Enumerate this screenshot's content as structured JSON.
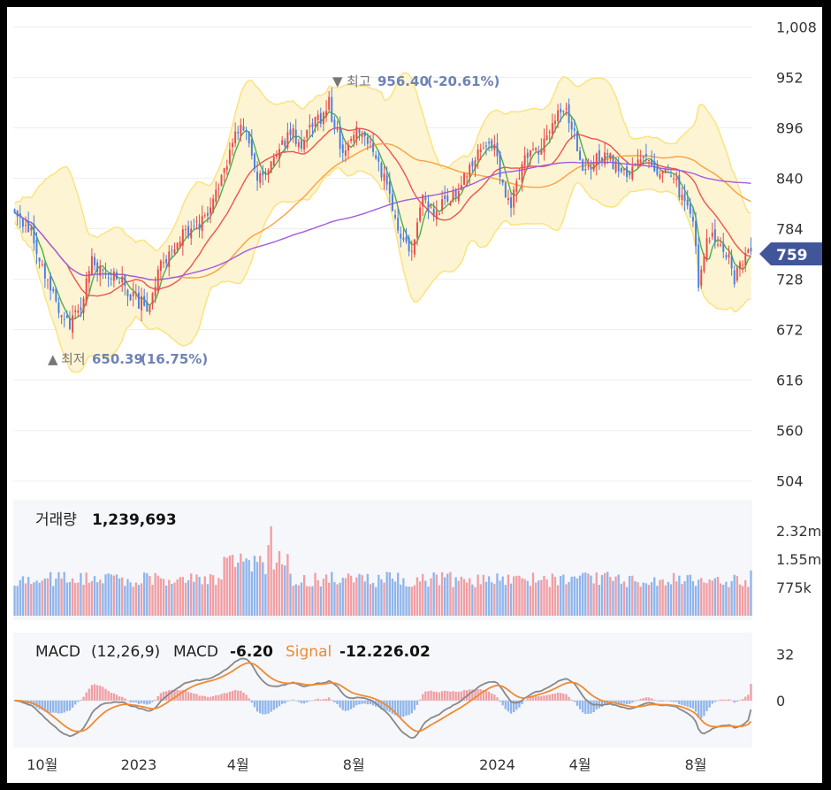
{
  "chart_data": {
    "type": "candlestick",
    "price_panel": {
      "y_ticks": [
        "1,008",
        "952",
        "896",
        "840",
        "784",
        "728",
        "672",
        "616",
        "560",
        "504"
      ],
      "ylim": [
        490,
        1030
      ],
      "current_price": "759",
      "current_price_value": 759,
      "high_marker": {
        "label": "최고",
        "value": "956.40",
        "pct": "(-20.61%)"
      },
      "low_marker": {
        "label": "최저",
        "value": "650.39",
        "pct": "(16.75%)"
      },
      "close_anchors": [
        [
          0,
          808
        ],
        [
          6,
          780
        ],
        [
          12,
          725
        ],
        [
          16,
          690
        ],
        [
          20,
          680
        ],
        [
          24,
          700
        ],
        [
          28,
          748
        ],
        [
          32,
          732
        ],
        [
          36,
          735
        ],
        [
          40,
          720
        ],
        [
          44,
          705
        ],
        [
          48,
          698
        ],
        [
          52,
          735
        ],
        [
          56,
          760
        ],
        [
          62,
          780
        ],
        [
          66,
          785
        ],
        [
          70,
          805
        ],
        [
          74,
          830
        ],
        [
          78,
          870
        ],
        [
          82,
          900
        ],
        [
          86,
          870
        ],
        [
          88,
          835
        ],
        [
          92,
          850
        ],
        [
          96,
          870
        ],
        [
          100,
          895
        ],
        [
          104,
          875
        ],
        [
          108,
          900
        ],
        [
          112,
          910
        ],
        [
          114,
          925
        ],
        [
          116,
          895
        ],
        [
          118,
          880
        ],
        [
          120,
          870
        ],
        [
          124,
          890
        ],
        [
          128,
          880
        ],
        [
          132,
          860
        ],
        [
          136,
          815
        ],
        [
          140,
          780
        ],
        [
          143,
          755
        ],
        [
          145,
          770
        ],
        [
          148,
          820
        ],
        [
          152,
          800
        ],
        [
          156,
          815
        ],
        [
          160,
          820
        ],
        [
          164,
          845
        ],
        [
          168,
          865
        ],
        [
          171,
          880
        ],
        [
          174,
          870
        ],
        [
          178,
          820
        ],
        [
          180,
          812
        ],
        [
          183,
          845
        ],
        [
          187,
          875
        ],
        [
          190,
          870
        ],
        [
          194,
          890
        ],
        [
          197,
          908
        ],
        [
          200,
          915
        ],
        [
          203,
          885
        ],
        [
          206,
          845
        ],
        [
          210,
          860
        ],
        [
          214,
          865
        ],
        [
          218,
          855
        ],
        [
          222,
          842
        ],
        [
          226,
          862
        ],
        [
          230,
          855
        ],
        [
          234,
          848
        ],
        [
          238,
          845
        ],
        [
          242,
          820
        ],
        [
          246,
          800
        ],
        [
          248,
          720
        ],
        [
          250,
          760
        ],
        [
          253,
          780
        ],
        [
          256,
          765
        ],
        [
          259,
          752
        ],
        [
          261,
          730
        ],
        [
          264,
          745
        ],
        [
          267,
          759
        ]
      ],
      "ma_series": [
        {
          "color": "#4caf50",
          "window": 5
        },
        {
          "color": "#ef5350",
          "window": 20
        },
        {
          "color": "#ffa040",
          "window": 60
        },
        {
          "color": "#a05ce0",
          "window": 120
        }
      ],
      "band_color": "#fdf4d3",
      "band_line_color": "#fbe27a"
    },
    "volume_panel": {
      "label": "거래량",
      "value": "1,239,693",
      "y_ticks": [
        "2.32m",
        "1.55m",
        "775k"
      ],
      "ylim": [
        0,
        3100000
      ],
      "up_color": "#f19ea3",
      "down_color": "#8fb5ec"
    },
    "macd_panel": {
      "label": "MACD",
      "params": "(12,26,9)",
      "macd_label": "MACD",
      "macd_value": "-6.20",
      "signal_label": "Signal",
      "signal_value": "-12.226.02",
      "y_ticks": [
        "32",
        "0"
      ],
      "ylim": [
        -33,
        42
      ],
      "macd_color": "#888888",
      "signal_color": "#f08a30"
    },
    "x_labels": [
      {
        "label": "10월",
        "index": 10
      },
      {
        "label": "2023",
        "index": 45
      },
      {
        "label": "4월",
        "index": 81
      },
      {
        "label": "8월",
        "index": 123
      },
      {
        "label": "2024",
        "index": 175
      },
      {
        "label": "4월",
        "index": 205
      },
      {
        "label": "8월",
        "index": 247
      }
    ],
    "n_candles": 268,
    "up_color": "#e84b4b",
    "down_color": "#4a7ee0"
  }
}
